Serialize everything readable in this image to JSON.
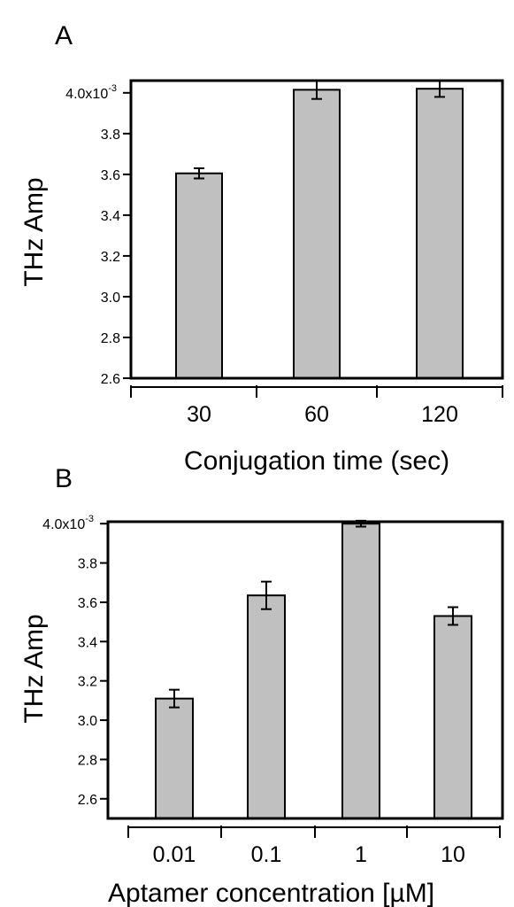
{
  "panels": [
    {
      "letter": "A",
      "chart_data": {
        "type": "bar",
        "categories": [
          "30",
          "60",
          "120"
        ],
        "values": [
          3.605,
          4.015,
          4.02
        ],
        "errors": [
          0.025,
          0.045,
          0.04
        ],
        "xlabel": "Conjugation time (sec)",
        "ylabel": "THz Amp",
        "ylim": [
          2.6,
          4.06
        ],
        "yticks": [
          2.6,
          2.8,
          3.0,
          3.2,
          3.4,
          3.6,
          3.8,
          4.0
        ],
        "ytick_labels": [
          "2.6",
          "2.8",
          "3.0",
          "3.2",
          "3.4",
          "3.6",
          "3.8",
          "4.0x10"
        ],
        "y_multiplier_exponent": "-3",
        "grid": false,
        "bar_color": "#c0c0c0"
      }
    },
    {
      "letter": "B",
      "chart_data": {
        "type": "bar",
        "categories": [
          "0.01",
          "0.1",
          "1",
          "10"
        ],
        "values": [
          3.11,
          3.635,
          4.0,
          3.53
        ],
        "errors": [
          0.045,
          0.07,
          0.015,
          0.045
        ],
        "xlabel": "Aptamer concentration [µM]",
        "ylabel": "THz Amp",
        "ylim": [
          2.5,
          4.01
        ],
        "yticks": [
          2.6,
          2.8,
          3.0,
          3.2,
          3.4,
          3.6,
          3.8,
          4.0
        ],
        "ytick_labels": [
          "2.6",
          "2.8",
          "3.0",
          "3.2",
          "3.4",
          "3.6",
          "3.8",
          "4.0x10"
        ],
        "y_multiplier_exponent": "-3",
        "grid": false,
        "bar_color": "#c0c0c0"
      }
    }
  ]
}
